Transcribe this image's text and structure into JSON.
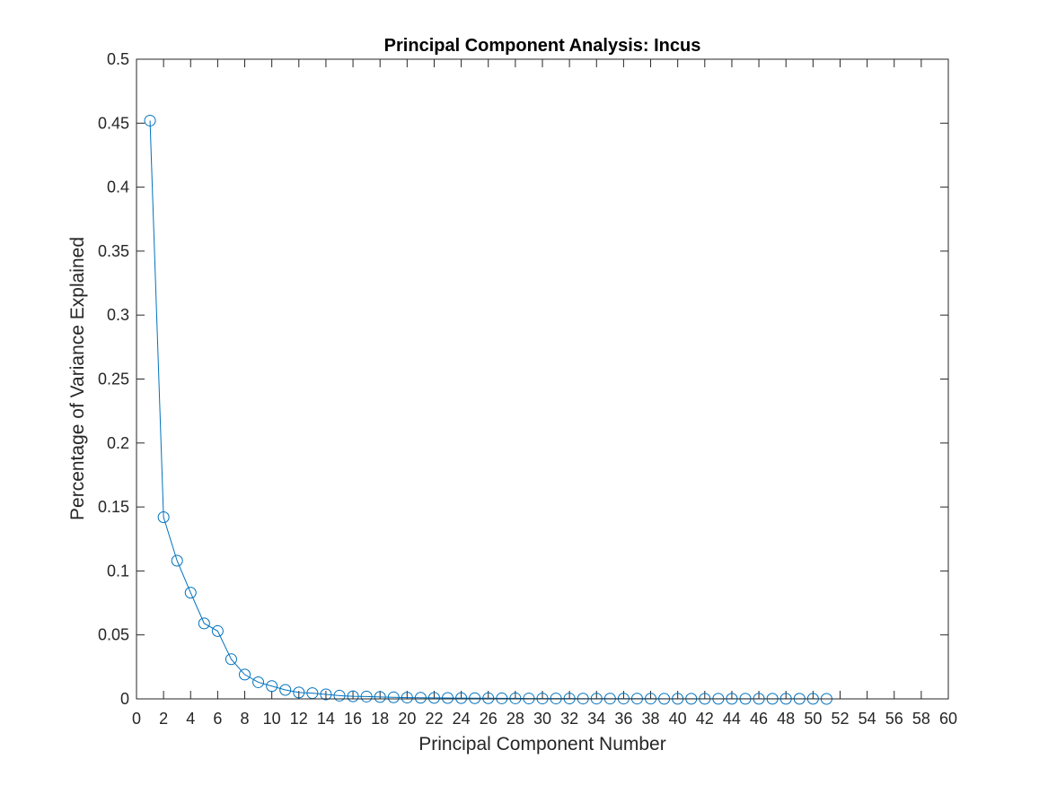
{
  "chart_data": {
    "type": "line",
    "title": "Principal Component Analysis: Incus",
    "xlabel": "Principal Component Number",
    "ylabel": "Percentage of Variance Explained",
    "xlim": [
      0,
      60
    ],
    "ylim": [
      0,
      0.5
    ],
    "xticks": [
      0,
      2,
      4,
      6,
      8,
      10,
      12,
      14,
      16,
      18,
      20,
      22,
      24,
      26,
      28,
      30,
      32,
      34,
      36,
      38,
      40,
      42,
      44,
      46,
      48,
      50,
      52,
      54,
      56,
      58,
      60
    ],
    "yticks": [
      0,
      0.05,
      0.1,
      0.15,
      0.2,
      0.25,
      0.3,
      0.35,
      0.4,
      0.45,
      0.5
    ],
    "xtick_labels": [
      "0",
      "2",
      "4",
      "6",
      "8",
      "10",
      "12",
      "14",
      "16",
      "18",
      "20",
      "22",
      "24",
      "26",
      "28",
      "30",
      "32",
      "34",
      "36",
      "38",
      "40",
      "42",
      "44",
      "46",
      "48",
      "50",
      "52",
      "54",
      "56",
      "58",
      "60"
    ],
    "ytick_labels": [
      "0",
      "0.05",
      "0.1",
      "0.15",
      "0.2",
      "0.25",
      "0.3",
      "0.35",
      "0.4",
      "0.45",
      "0.5"
    ],
    "grid": false,
    "marker": "circle",
    "color": "#0072BD",
    "series": [
      {
        "x": [
          1,
          2,
          3,
          4,
          5,
          6,
          7,
          8,
          9,
          10,
          11,
          12,
          13,
          14,
          15,
          16,
          17,
          18,
          19,
          20,
          21,
          22,
          23,
          24,
          25,
          26,
          27,
          28,
          29,
          30,
          31,
          32,
          33,
          34,
          35,
          36,
          37,
          38,
          39,
          40,
          41,
          42,
          43,
          44,
          45,
          46,
          47,
          48,
          49,
          50,
          51
        ],
        "values": [
          0.452,
          0.142,
          0.108,
          0.083,
          0.059,
          0.053,
          0.031,
          0.019,
          0.013,
          0.01,
          0.007,
          0.005,
          0.0045,
          0.0035,
          0.0025,
          0.002,
          0.0018,
          0.0015,
          0.0012,
          0.001,
          0.0009,
          0.0008,
          0.0007,
          0.0006,
          0.0005,
          0.0005,
          0.0004,
          0.0004,
          0.0003,
          0.0003,
          0.0003,
          0.0003,
          0.0002,
          0.0002,
          0.0002,
          0.0002,
          0.0002,
          0.0002,
          0.0001,
          0.0001,
          0.0001,
          0.0001,
          0.0001,
          0.0001,
          0.0001,
          0.0001,
          0.0001,
          0.0001,
          0.0001,
          0.0001,
          0.0
        ]
      }
    ]
  }
}
